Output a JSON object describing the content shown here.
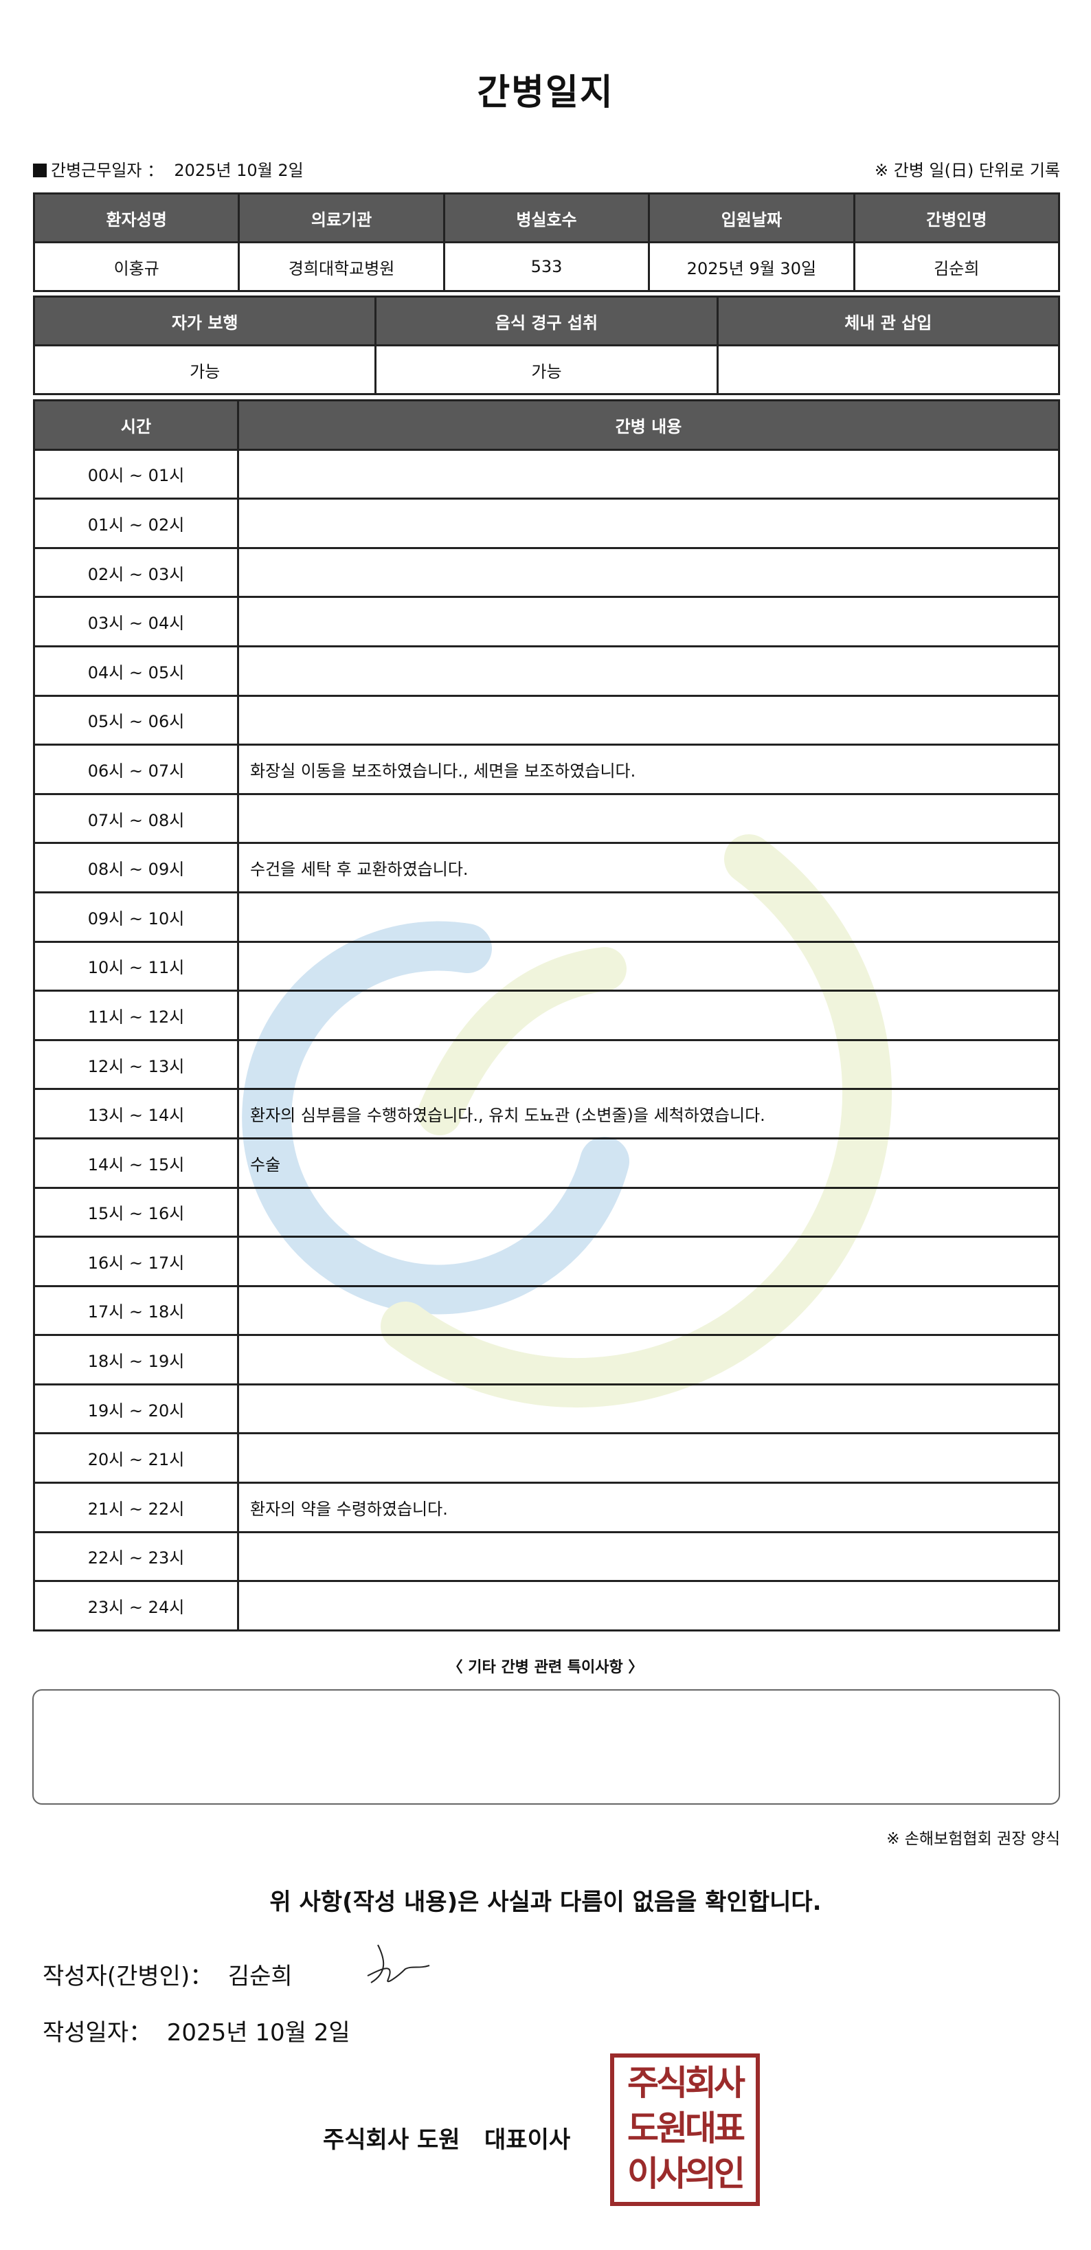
{
  "title": "간병일지",
  "work_date_label": "간병근무일자 ：",
  "work_date": "2025년 10월 2일",
  "unit_note": "※ 간병 일(日) 단위로 기록",
  "info_table": {
    "headers": [
      "환자성명",
      "의료기관",
      "병실호수",
      "입원날짜",
      "간병인명"
    ],
    "values": [
      "이홍규",
      "경희대학교병원",
      "533",
      "2025년 9월 30일",
      "김순희"
    ]
  },
  "status_table": {
    "headers": [
      "자가 보행",
      "음식 경구 섭취",
      "체내 관 삽입"
    ],
    "values": [
      "가능",
      "가능",
      ""
    ]
  },
  "log_table": {
    "headers": [
      "시간",
      "간병 내용"
    ],
    "rows": [
      {
        "time": "00시 ~ 01시",
        "content": ""
      },
      {
        "time": "01시 ~ 02시",
        "content": ""
      },
      {
        "time": "02시 ~ 03시",
        "content": ""
      },
      {
        "time": "03시 ~ 04시",
        "content": ""
      },
      {
        "time": "04시 ~ 05시",
        "content": ""
      },
      {
        "time": "05시 ~ 06시",
        "content": ""
      },
      {
        "time": "06시 ~ 07시",
        "content": "화장실 이동을 보조하였습니다., 세면을 보조하였습니다."
      },
      {
        "time": "07시 ~ 08시",
        "content": ""
      },
      {
        "time": "08시 ~ 09시",
        "content": "수건을 세탁 후 교환하였습니다."
      },
      {
        "time": "09시 ~ 10시",
        "content": ""
      },
      {
        "time": "10시 ~ 11시",
        "content": ""
      },
      {
        "time": "11시 ~ 12시",
        "content": ""
      },
      {
        "time": "12시 ~ 13시",
        "content": ""
      },
      {
        "time": "13시 ~ 14시",
        "content": "환자의 심부름을 수행하였습니다., 유치 도뇨관 (소변줄)을 세척하였습니다."
      },
      {
        "time": "14시 ~ 15시",
        "content": "수술"
      },
      {
        "time": "15시 ~ 16시",
        "content": ""
      },
      {
        "time": "16시 ~ 17시",
        "content": ""
      },
      {
        "time": "17시 ~ 18시",
        "content": ""
      },
      {
        "time": "18시 ~ 19시",
        "content": ""
      },
      {
        "time": "19시 ~ 20시",
        "content": ""
      },
      {
        "time": "20시 ~ 21시",
        "content": ""
      },
      {
        "time": "21시 ~ 22시",
        "content": "환자의 약을 수령하였습니다."
      },
      {
        "time": "22시 ~ 23시",
        "content": ""
      },
      {
        "time": "23시 ~ 24시",
        "content": ""
      }
    ]
  },
  "notes_label": "〈 기타 간병 관련 특이사항 〉",
  "notes_value": "",
  "recommendation_note": "※ 손해보험협회 권장 양식",
  "confirmation": "위 사항(작성 내용)은 사실과 다름이 없음을 확인합니다.",
  "writer_label": "작성자(간병인)：",
  "writer_name": "김순희",
  "written_date_label": "작성일자：",
  "written_date": "2025년 10월 2일",
  "company_line": "주식회사 도원   대표이사",
  "stamp_text": [
    "주식회사",
    "도원대표",
    "이사의인"
  ],
  "colors": {
    "header_bg": "#595959",
    "stamp": "#9b2b2b",
    "watermark_blue": "#c9dff0",
    "watermark_green": "#eef3d6"
  }
}
